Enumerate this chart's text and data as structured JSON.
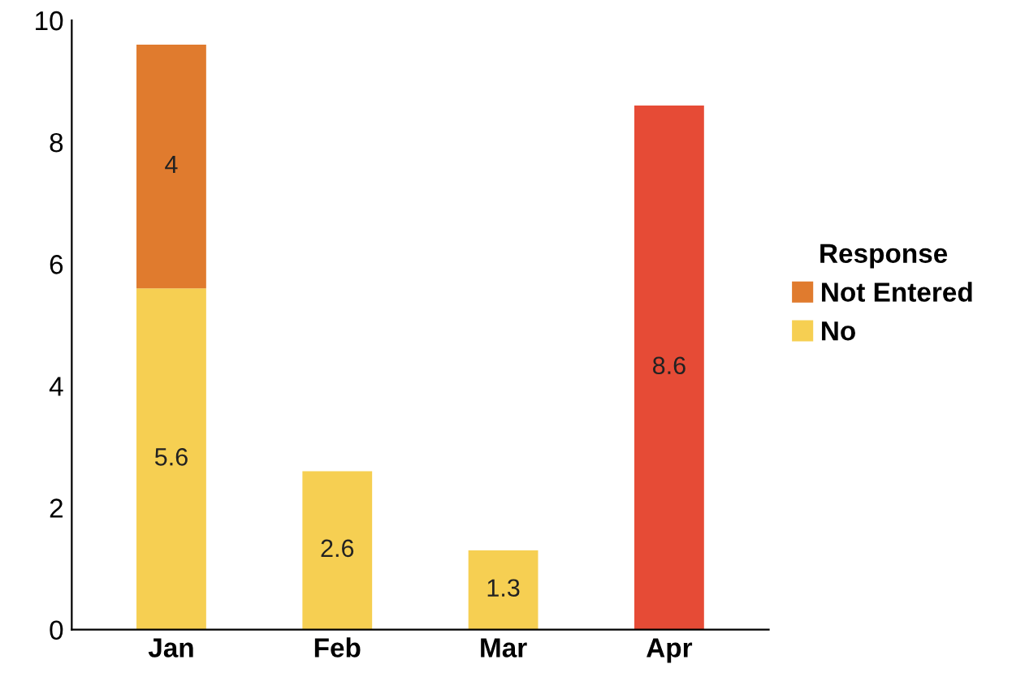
{
  "chart_data": {
    "type": "bar",
    "stacked": true,
    "legend_title": "Response",
    "legend": "right",
    "categories": [
      "Jan",
      "Feb",
      "Mar",
      "Apr"
    ],
    "series": [
      {
        "name": "No",
        "color": "#f6cf52",
        "values": [
          5.6,
          2.6,
          1.3,
          null
        ]
      },
      {
        "name": "Not Entered",
        "color": "#e07b2e",
        "values": [
          4,
          null,
          null,
          null
        ]
      },
      {
        "color": "#e64b36",
        "values": [
          null,
          null,
          null,
          8.6
        ]
      }
    ],
    "ylim": [
      0,
      10
    ],
    "yticks": [
      0,
      2,
      4,
      6,
      8,
      10
    ],
    "data_labels": true
  }
}
